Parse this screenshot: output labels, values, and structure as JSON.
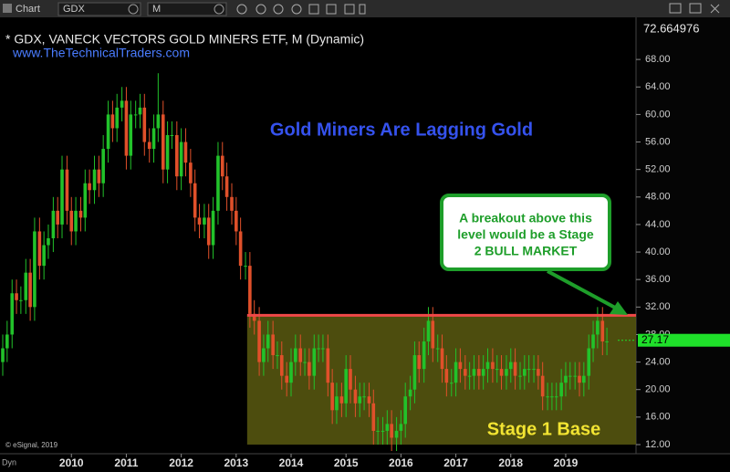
{
  "toolbar": {
    "app": "Chart",
    "symbol": "GDX",
    "interval": "M"
  },
  "chart_data": {
    "type": "candlestick",
    "title": "* GDX, VANECK VECTORS GOLD MINERS ETF, M (Dynamic)",
    "subtitle": "www.TheTechnicalTraders.com",
    "headline": "Gold Miners Are Lagging Gold",
    "callout": [
      "A breakout above this",
      "level would be a Stage",
      "2 BULL MARKET"
    ],
    "base_label": "Stage 1 Base",
    "copyright": "© eSignal, 2019",
    "mode": "Dyn",
    "up_color": "#22c22a",
    "down_color": "#e0502a",
    "xlim": [
      2008.7,
      2020.28
    ],
    "xticks": [
      2010,
      2011,
      2012,
      2013,
      2014,
      2015,
      2016,
      2017,
      2018,
      2019
    ],
    "ylim": [
      11.2,
      72.664976
    ],
    "yticks": [
      {
        "value": 12,
        "label": "12.00"
      },
      {
        "value": 16,
        "label": "16.00"
      },
      {
        "value": 20,
        "label": "20.00"
      },
      {
        "value": 24,
        "label": "24.00"
      },
      {
        "value": 28,
        "label": "28.00"
      },
      {
        "value": 32,
        "label": "32.00"
      },
      {
        "value": 36,
        "label": "36.00"
      },
      {
        "value": 40,
        "label": "40.00"
      },
      {
        "value": 44,
        "label": "44.00"
      },
      {
        "value": 48,
        "label": "48.00"
      },
      {
        "value": 52,
        "label": "52.00"
      },
      {
        "value": 56,
        "label": "56.00"
      },
      {
        "value": 60,
        "label": "60.00"
      },
      {
        "value": 64,
        "label": "64.00"
      },
      {
        "value": 68,
        "label": "68.00"
      }
    ],
    "last_price": 27.17,
    "resistance": {
      "value": 30.8,
      "x_start": 2013.2
    },
    "base_zone": {
      "x": [
        2013.2,
        2020.28
      ],
      "y": [
        12,
        30.8
      ]
    },
    "x": [
      2008.75,
      2008.83,
      2008.92,
      2009,
      2009.08,
      2009.17,
      2009.25,
      2009.33,
      2009.42,
      2009.5,
      2009.58,
      2009.67,
      2009.75,
      2009.83,
      2009.92,
      2010,
      2010.08,
      2010.17,
      2010.25,
      2010.33,
      2010.42,
      2010.5,
      2010.58,
      2010.67,
      2010.75,
      2010.83,
      2010.92,
      2011,
      2011.08,
      2011.17,
      2011.25,
      2011.33,
      2011.42,
      2011.5,
      2011.58,
      2011.67,
      2011.75,
      2011.83,
      2011.92,
      2012,
      2012.08,
      2012.17,
      2012.25,
      2012.33,
      2012.42,
      2012.5,
      2012.58,
      2012.67,
      2012.75,
      2012.83,
      2012.92,
      2013,
      2013.08,
      2013.17,
      2013.25,
      2013.33,
      2013.42,
      2013.5,
      2013.58,
      2013.67,
      2013.75,
      2013.83,
      2013.92,
      2014,
      2014.08,
      2014.17,
      2014.25,
      2014.33,
      2014.42,
      2014.5,
      2014.58,
      2014.67,
      2014.75,
      2014.83,
      2014.92,
      2015,
      2015.08,
      2015.17,
      2015.25,
      2015.33,
      2015.42,
      2015.5,
      2015.58,
      2015.67,
      2015.75,
      2015.83,
      2015.92,
      2016,
      2016.08,
      2016.17,
      2016.25,
      2016.33,
      2016.42,
      2016.5,
      2016.58,
      2016.67,
      2016.75,
      2016.83,
      2016.92,
      2017,
      2017.08,
      2017.17,
      2017.25,
      2017.33,
      2017.42,
      2017.5,
      2017.58,
      2017.67,
      2017.75,
      2017.83,
      2017.92,
      2018,
      2018.08,
      2018.17,
      2018.25,
      2018.33,
      2018.42,
      2018.5,
      2018.58,
      2018.67,
      2018.75,
      2018.83,
      2018.92,
      2019,
      2019.08,
      2019.17,
      2019.25,
      2019.33,
      2019.42,
      2019.5,
      2019.58,
      2019.67,
      2019.75
    ],
    "open": [
      24,
      26,
      28,
      34,
      33,
      33,
      37,
      32,
      43,
      38,
      41,
      42,
      46,
      44,
      52,
      46,
      43,
      46,
      45,
      50,
      49,
      52,
      50,
      55,
      60,
      58,
      61,
      62,
      54,
      60,
      60,
      61,
      56,
      55,
      58,
      60,
      52,
      57,
      57,
      51,
      56,
      53,
      50,
      45,
      44,
      45,
      41,
      46,
      54,
      51,
      48,
      46,
      43,
      38,
      38,
      31,
      30,
      24,
      26,
      28,
      25,
      25,
      22,
      21,
      24,
      26,
      24,
      24,
      22,
      26,
      26,
      26,
      21,
      17,
      19,
      18,
      23,
      20,
      18,
      19,
      19,
      18,
      14,
      14,
      14,
      15,
      13,
      14,
      15,
      19,
      20,
      25,
      23,
      27,
      30,
      26,
      26,
      23,
      21,
      21,
      24,
      23,
      22,
      22,
      23,
      22,
      23,
      24,
      23,
      23,
      22,
      23,
      24,
      22,
      22,
      23,
      23,
      23,
      22,
      19,
      19,
      19,
      19,
      21,
      22,
      22,
      22,
      21,
      22,
      26,
      28,
      30,
      27
    ],
    "high": [
      28,
      30,
      36,
      36,
      35,
      39,
      39,
      45,
      45,
      43,
      44,
      48,
      48,
      54,
      54,
      48,
      48,
      48,
      52,
      52,
      54,
      54,
      57,
      62,
      62,
      63,
      64,
      64,
      62,
      62,
      63,
      63,
      58,
      60,
      66,
      62,
      59,
      59,
      59,
      58,
      58,
      55,
      52,
      47,
      47,
      47,
      48,
      56,
      56,
      53,
      50,
      48,
      45,
      40,
      40,
      33,
      32,
      28,
      30,
      30,
      27,
      27,
      24,
      26,
      28,
      28,
      26,
      26,
      28,
      28,
      28,
      28,
      23,
      21,
      21,
      25,
      25,
      22,
      21,
      21,
      21,
      20,
      16,
      16,
      17,
      17,
      16,
      17,
      21,
      22,
      27,
      27,
      29,
      32,
      32,
      28,
      28,
      25,
      23,
      26,
      26,
      25,
      24,
      25,
      25,
      25,
      26,
      26,
      25,
      25,
      25,
      26,
      26,
      24,
      25,
      25,
      25,
      25,
      24,
      21,
      21,
      21,
      23,
      24,
      24,
      24,
      24,
      24,
      28,
      30,
      32,
      32,
      29
    ],
    "low": [
      22,
      24,
      26,
      31,
      31,
      31,
      30,
      30,
      36,
      36,
      39,
      40,
      42,
      42,
      44,
      41,
      41,
      43,
      43,
      47,
      47,
      48,
      48,
      53,
      56,
      56,
      59,
      52,
      52,
      58,
      58,
      54,
      53,
      53,
      56,
      50,
      50,
      55,
      49,
      49,
      51,
      48,
      43,
      42,
      42,
      39,
      39,
      44,
      49,
      46,
      44,
      41,
      36,
      36,
      29,
      28,
      22,
      22,
      24,
      23,
      23,
      20,
      19,
      19,
      22,
      22,
      22,
      20,
      20,
      24,
      24,
      19,
      15,
      15,
      16,
      16,
      18,
      16,
      16,
      17,
      16,
      12,
      12,
      12,
      12,
      11,
      11,
      12,
      13,
      17,
      18,
      21,
      21,
      25,
      24,
      24,
      21,
      19,
      19,
      19,
      21,
      20,
      20,
      20,
      20,
      20,
      21,
      21,
      21,
      20,
      20,
      21,
      20,
      20,
      20,
      21,
      21,
      20,
      17,
      17,
      17,
      17,
      17,
      19,
      20,
      20,
      19,
      19,
      20,
      24,
      26,
      25,
      25
    ],
    "close": [
      26,
      28,
      34,
      33,
      33,
      37,
      32,
      43,
      38,
      41,
      42,
      46,
      44,
      52,
      46,
      43,
      46,
      45,
      50,
      49,
      52,
      50,
      55,
      60,
      58,
      61,
      62,
      54,
      60,
      60,
      61,
      56,
      55,
      58,
      60,
      52,
      57,
      57,
      51,
      56,
      53,
      50,
      45,
      44,
      45,
      41,
      46,
      54,
      51,
      48,
      46,
      43,
      38,
      38,
      31,
      30,
      24,
      26,
      28,
      25,
      25,
      22,
      21,
      24,
      26,
      24,
      24,
      22,
      26,
      26,
      26,
      21,
      17,
      19,
      18,
      23,
      20,
      18,
      19,
      19,
      18,
      14,
      14,
      14,
      15,
      13,
      14,
      15,
      19,
      20,
      25,
      23,
      27,
      30,
      26,
      26,
      23,
      21,
      21,
      24,
      23,
      22,
      22,
      23,
      22,
      23,
      24,
      23,
      23,
      22,
      23,
      24,
      22,
      22,
      23,
      23,
      23,
      22,
      19,
      19,
      19,
      19,
      21,
      22,
      22,
      22,
      21,
      22,
      26,
      28,
      30,
      27,
      27
    ]
  }
}
